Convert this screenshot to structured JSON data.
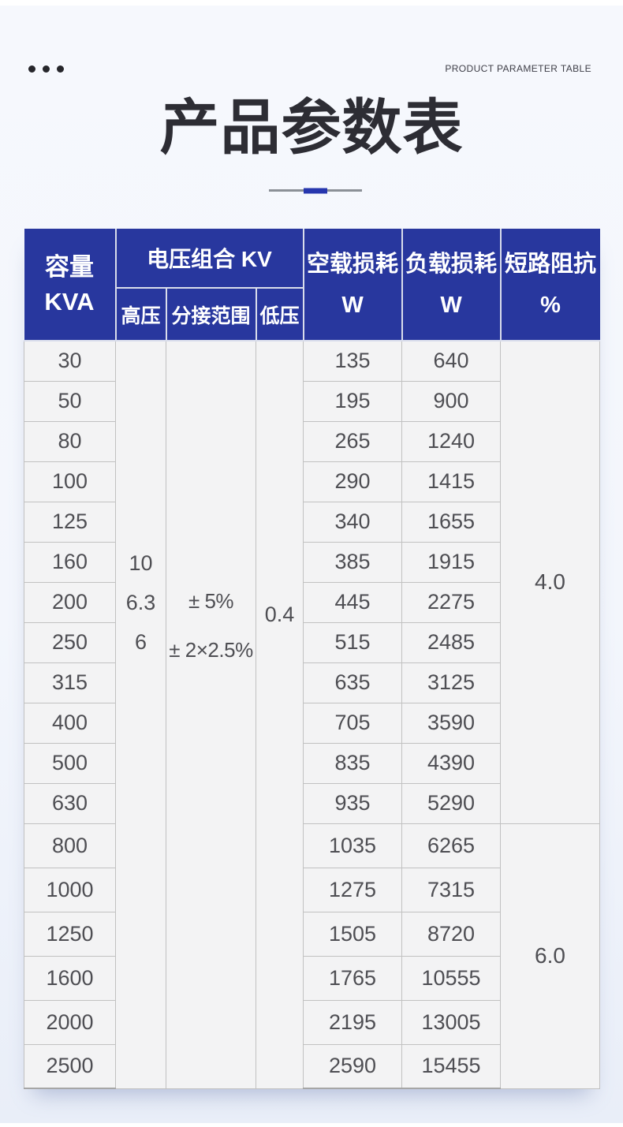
{
  "page": {
    "top_right_label": "PRODUCT PARAMETER TABLE",
    "title": "产品参数表"
  },
  "colors": {
    "header_bg": "#28379e",
    "divider_accent": "#2636ae",
    "page_bg": "#f3f6fc",
    "cell_bg": "#f3f3f4"
  },
  "icons": {
    "dots_decoration": "three-dots"
  },
  "table": {
    "headers": {
      "capacity_line1": "容量",
      "capacity_line2": "KVA",
      "voltage_group": "电压组合 KV",
      "high_voltage": "高压",
      "tap_range": "分接范围",
      "low_voltage": "低压",
      "no_load_line1": "空载损耗",
      "no_load_line2": "W",
      "load_line1": "负载损耗",
      "load_line2": "W",
      "impedance_line1": "短路阻抗",
      "impedance_line2": "%"
    },
    "merged": {
      "high_voltage_values": [
        "10",
        "6.3",
        "6"
      ],
      "tap_range_values": [
        "± 5%",
        "± 2×2.5%"
      ],
      "low_voltage_value": "0.4",
      "impedance_groups": [
        {
          "value": "4.0",
          "row_span": 12
        },
        {
          "value": "6.0",
          "row_span": 6
        }
      ]
    },
    "rows": [
      {
        "kva": "30",
        "no_load_loss_w": "135",
        "load_loss_w": "640"
      },
      {
        "kva": "50",
        "no_load_loss_w": "195",
        "load_loss_w": "900"
      },
      {
        "kva": "80",
        "no_load_loss_w": "265",
        "load_loss_w": "1240"
      },
      {
        "kva": "100",
        "no_load_loss_w": "290",
        "load_loss_w": "1415"
      },
      {
        "kva": "125",
        "no_load_loss_w": "340",
        "load_loss_w": "1655"
      },
      {
        "kva": "160",
        "no_load_loss_w": "385",
        "load_loss_w": "1915"
      },
      {
        "kva": "200",
        "no_load_loss_w": "445",
        "load_loss_w": "2275"
      },
      {
        "kva": "250",
        "no_load_loss_w": "515",
        "load_loss_w": "2485"
      },
      {
        "kva": "315",
        "no_load_loss_w": "635",
        "load_loss_w": "3125"
      },
      {
        "kva": "400",
        "no_load_loss_w": "705",
        "load_loss_w": "3590"
      },
      {
        "kva": "500",
        "no_load_loss_w": "835",
        "load_loss_w": "4390"
      },
      {
        "kva": "630",
        "no_load_loss_w": "935",
        "load_loss_w": "5290"
      },
      {
        "kva": "800",
        "no_load_loss_w": "1035",
        "load_loss_w": "6265"
      },
      {
        "kva": "1000",
        "no_load_loss_w": "1275",
        "load_loss_w": "7315"
      },
      {
        "kva": "1250",
        "no_load_loss_w": "1505",
        "load_loss_w": "8720"
      },
      {
        "kva": "1600",
        "no_load_loss_w": "1765",
        "load_loss_w": "10555"
      },
      {
        "kva": "2000",
        "no_load_loss_w": "2195",
        "load_loss_w": "13005"
      },
      {
        "kva": "2500",
        "no_load_loss_w": "2590",
        "load_loss_w": "15455"
      }
    ]
  }
}
